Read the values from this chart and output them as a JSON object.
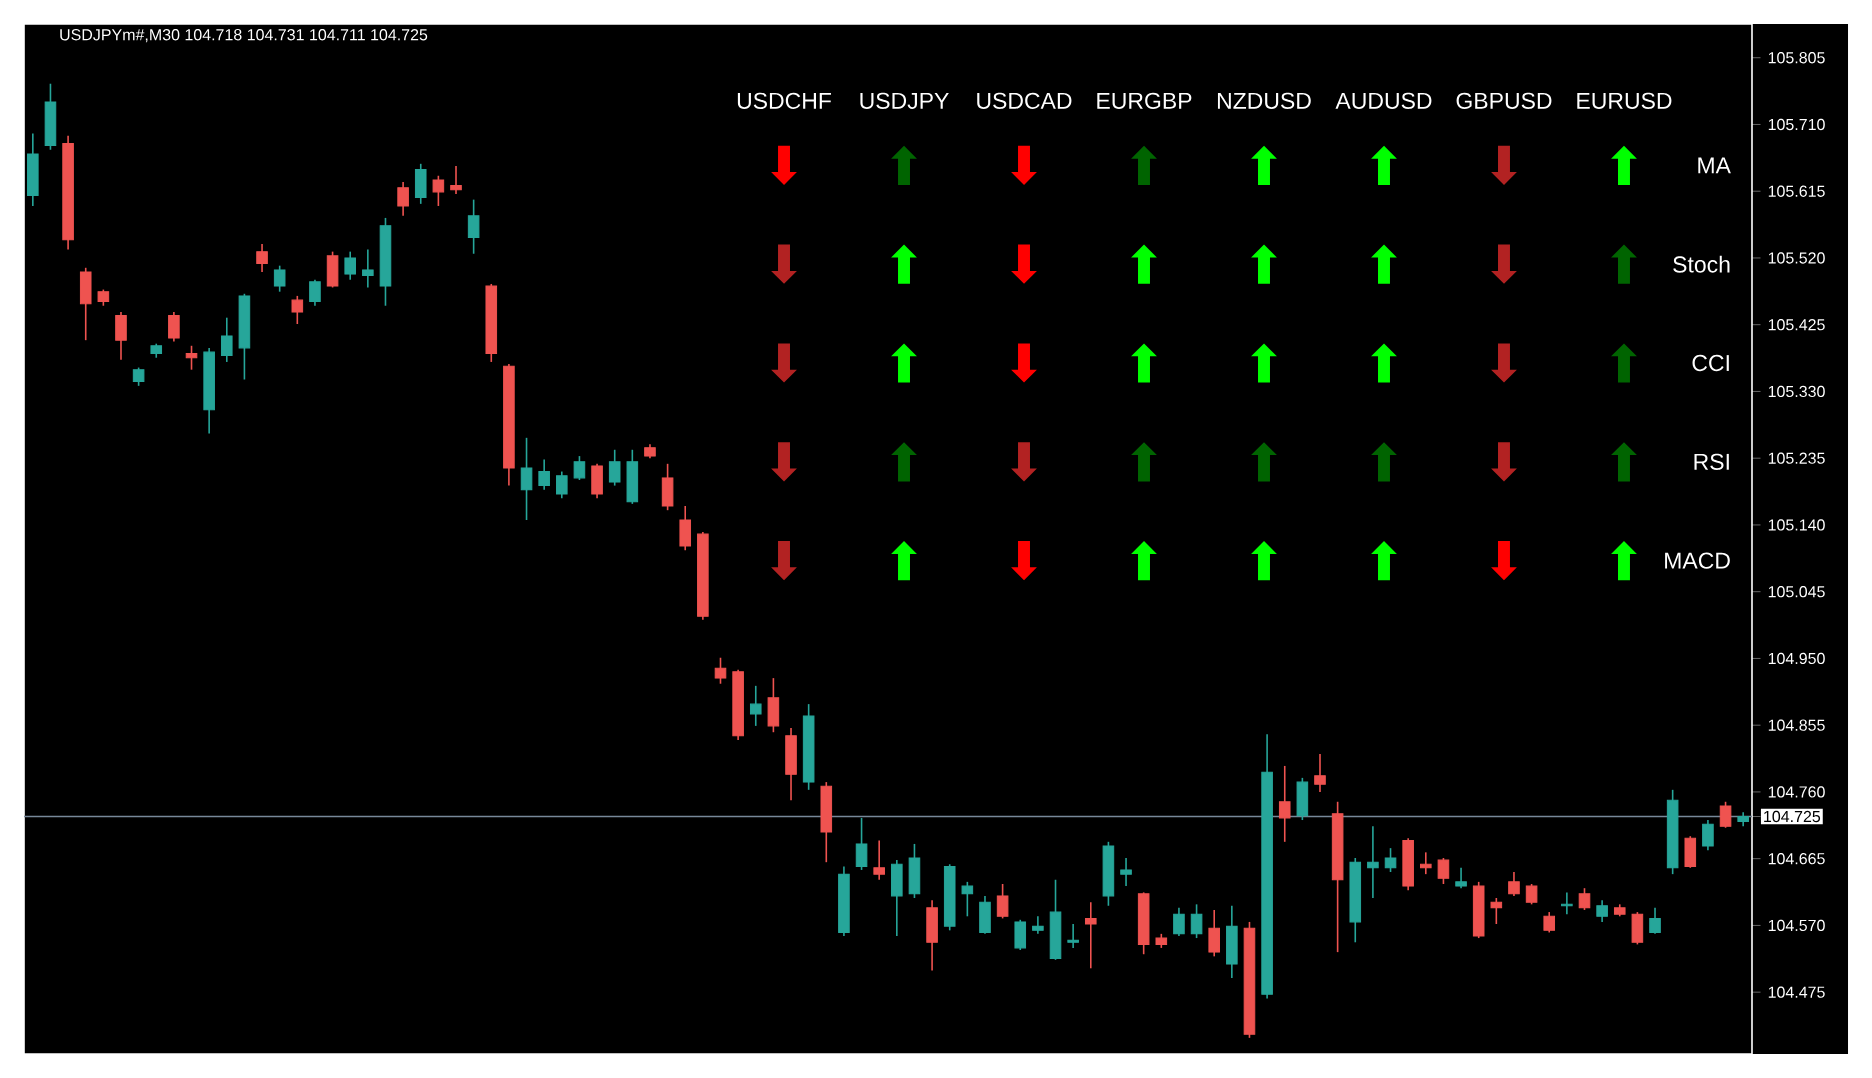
{
  "chart_data": [
    {
      "type": "candlestick",
      "title": "USDJPYm#,M30 104.718 104.731 104.711 104.725",
      "categories": [
        null,
        null,
        null,
        null,
        null,
        null,
        null,
        null,
        null,
        null,
        null,
        null,
        null,
        null,
        null,
        null,
        null,
        null,
        null,
        null,
        null,
        null,
        null,
        null,
        null,
        null,
        null,
        null,
        null,
        null,
        null,
        null,
        null,
        null,
        null,
        null,
        null,
        null,
        null,
        null,
        null,
        null,
        null,
        null,
        null,
        null,
        null,
        null,
        null,
        null,
        null,
        null,
        null,
        null,
        null,
        null,
        null,
        null,
        null,
        null,
        null,
        null,
        null,
        null,
        null,
        null,
        null,
        null,
        null,
        null,
        null,
        null,
        null,
        null,
        null,
        null,
        null,
        null,
        null,
        null,
        null,
        null,
        null,
        null,
        null,
        null,
        null,
        null,
        null,
        null,
        null,
        null,
        null,
        null,
        null,
        null,
        null,
        null
      ],
      "ohlc": [
        [
          105.609,
          105.697,
          105.594,
          105.668
        ],
        [
          105.68,
          105.768,
          105.674,
          105.742
        ],
        [
          105.683,
          105.694,
          105.532,
          105.546
        ],
        [
          105.5,
          105.506,
          105.403,
          105.455
        ],
        [
          105.472,
          105.475,
          105.452,
          105.458
        ],
        [
          105.438,
          105.443,
          105.375,
          105.403
        ],
        [
          105.344,
          105.364,
          105.338,
          105.361
        ],
        [
          105.384,
          105.398,
          105.378,
          105.395
        ],
        [
          105.438,
          105.443,
          105.401,
          105.406
        ],
        [
          105.384,
          105.395,
          105.361,
          105.378
        ],
        [
          105.304,
          105.392,
          105.27,
          105.386
        ],
        [
          105.381,
          105.435,
          105.372,
          105.409
        ],
        [
          105.392,
          105.469,
          105.347,
          105.466
        ],
        [
          105.529,
          105.54,
          105.5,
          105.512
        ],
        [
          105.48,
          105.509,
          105.472,
          105.503
        ],
        [
          105.46,
          105.466,
          105.426,
          105.443
        ],
        [
          105.458,
          105.489,
          105.452,
          105.486
        ],
        [
          105.523,
          105.529,
          105.478,
          105.48
        ],
        [
          105.497,
          105.529,
          105.489,
          105.52
        ],
        [
          105.495,
          105.532,
          105.478,
          105.503
        ],
        [
          105.48,
          105.577,
          105.452,
          105.566
        ],
        [
          105.62,
          105.628,
          105.58,
          105.594
        ],
        [
          105.606,
          105.654,
          105.597,
          105.646
        ],
        [
          105.631,
          105.637,
          105.594,
          105.614
        ],
        [
          105.623,
          105.651,
          105.611,
          105.617
        ],
        [
          105.549,
          105.603,
          105.526,
          105.58
        ],
        [
          105.48,
          105.483,
          105.372,
          105.384
        ],
        [
          105.366,
          105.369,
          105.196,
          105.221
        ],
        [
          105.19,
          105.264,
          105.147,
          105.221
        ],
        [
          105.196,
          105.233,
          105.19,
          105.216
        ],
        [
          105.184,
          105.216,
          105.178,
          105.21
        ],
        [
          105.207,
          105.238,
          105.204,
          105.23
        ],
        [
          105.224,
          105.227,
          105.178,
          105.184
        ],
        [
          105.201,
          105.247,
          105.196,
          105.23
        ],
        [
          105.173,
          105.247,
          105.17,
          105.23
        ],
        [
          105.25,
          105.255,
          105.235,
          105.238
        ],
        [
          105.207,
          105.227,
          105.161,
          105.167
        ],
        [
          105.147,
          105.167,
          105.104,
          105.11
        ],
        [
          105.127,
          105.13,
          105.005,
          105.01
        ],
        [
          104.936,
          104.951,
          104.914,
          104.922
        ],
        [
          104.931,
          104.934,
          104.834,
          104.84
        ],
        [
          104.871,
          104.911,
          104.854,
          104.885
        ],
        [
          104.894,
          104.922,
          104.845,
          104.854
        ],
        [
          104.84,
          104.851,
          104.748,
          104.785
        ],
        [
          104.774,
          104.885,
          104.763,
          104.868
        ],
        [
          104.768,
          104.774,
          104.66,
          104.703
        ],
        [
          104.56,
          104.654,
          104.555,
          104.643
        ],
        [
          104.654,
          104.723,
          104.649,
          104.686
        ],
        [
          104.652,
          104.691,
          104.635,
          104.643
        ],
        [
          104.612,
          104.663,
          104.555,
          104.657
        ],
        [
          104.615,
          104.686,
          104.609,
          104.666
        ],
        [
          104.595,
          104.606,
          104.506,
          104.546
        ],
        [
          104.569,
          104.657,
          104.563,
          104.654
        ],
        [
          104.615,
          104.632,
          104.583,
          104.626
        ],
        [
          104.56,
          104.612,
          104.558,
          104.603
        ],
        [
          104.612,
          104.629,
          104.58,
          104.583
        ],
        [
          104.538,
          104.578,
          104.535,
          104.575
        ],
        [
          104.563,
          104.583,
          104.558,
          104.569
        ],
        [
          104.523,
          104.635,
          104.521,
          104.589
        ],
        [
          104.546,
          104.572,
          104.538,
          104.549
        ],
        [
          104.58,
          104.603,
          104.509,
          104.572
        ],
        [
          104.612,
          104.689,
          104.598,
          104.683
        ],
        [
          104.643,
          104.666,
          104.626,
          104.649
        ],
        [
          104.615,
          104.617,
          104.529,
          104.543
        ],
        [
          104.552,
          104.558,
          104.538,
          104.543
        ],
        [
          104.558,
          104.595,
          104.555,
          104.586
        ],
        [
          104.558,
          104.6,
          104.552,
          104.586
        ],
        [
          104.566,
          104.592,
          104.526,
          104.532
        ],
        [
          104.515,
          104.598,
          104.495,
          104.569
        ],
        [
          104.566,
          104.575,
          104.41,
          104.415
        ],
        [
          104.472,
          104.842,
          104.466,
          104.788
        ],
        [
          104.746,
          104.797,
          104.689,
          104.723
        ],
        [
          104.726,
          104.78,
          104.72,
          104.774
        ],
        [
          104.783,
          104.814,
          104.76,
          104.771
        ],
        [
          104.729,
          104.746,
          104.532,
          104.635
        ],
        [
          104.575,
          104.666,
          104.546,
          104.66
        ],
        [
          104.652,
          104.711,
          104.609,
          104.66
        ],
        [
          104.652,
          104.68,
          104.646,
          104.666
        ],
        [
          104.691,
          104.694,
          104.62,
          104.626
        ],
        [
          104.657,
          104.674,
          104.643,
          104.652
        ],
        [
          104.663,
          104.666,
          104.629,
          104.637
        ],
        [
          104.626,
          104.652,
          104.623,
          104.632
        ],
        [
          104.626,
          104.632,
          104.552,
          104.555
        ],
        [
          104.603,
          104.609,
          104.572,
          104.595
        ],
        [
          104.632,
          104.646,
          104.612,
          104.615
        ],
        [
          104.626,
          104.629,
          104.6,
          104.603
        ],
        [
          104.583,
          104.589,
          104.56,
          104.563
        ],
        [
          104.598,
          104.617,
          104.586,
          104.6
        ],
        [
          104.615,
          104.623,
          104.592,
          104.595
        ],
        [
          104.583,
          104.606,
          104.575,
          104.598
        ],
        [
          104.595,
          104.6,
          104.583,
          104.586
        ],
        [
          104.586,
          104.589,
          104.543,
          104.546
        ],
        [
          104.56,
          104.595,
          104.558,
          104.58
        ],
        [
          104.652,
          104.763,
          104.643,
          104.748
        ],
        [
          104.694,
          104.697,
          104.652,
          104.654
        ],
        [
          104.683,
          104.72,
          104.677,
          104.714
        ],
        [
          104.74,
          104.746,
          104.709,
          104.711
        ],
        [
          104.718,
          104.731,
          104.711,
          104.725
        ]
      ],
      "colors": [
        "#26a69a",
        "#26a69a",
        "#ef5350",
        "#ef5350",
        "#ef5350",
        "#ef5350",
        "#26a69a",
        "#26a69a",
        "#ef5350",
        "#ef5350",
        "#26a69a",
        "#26a69a",
        "#26a69a",
        "#ef5350",
        "#26a69a",
        "#ef5350",
        "#26a69a",
        "#ef5350",
        "#26a69a",
        "#26a69a",
        "#26a69a",
        "#ef5350",
        "#26a69a",
        "#ef5350",
        "#ef5350",
        "#26a69a",
        "#ef5350",
        "#ef5350",
        "#26a69a",
        "#26a69a",
        "#26a69a",
        "#26a69a",
        "#ef5350",
        "#26a69a",
        "#26a69a",
        "#ef5350",
        "#ef5350",
        "#ef5350",
        "#ef5350",
        "#ef5350",
        "#ef5350",
        "#26a69a",
        "#ef5350",
        "#ef5350",
        "#26a69a",
        "#ef5350",
        "#26a69a",
        "#26a69a",
        "#ef5350",
        "#26a69a",
        "#26a69a",
        "#ef5350",
        "#26a69a",
        "#26a69a",
        "#26a69a",
        "#ef5350",
        "#26a69a",
        "#26a69a",
        "#26a69a",
        "#26a69a",
        "#ef5350",
        "#26a69a",
        "#26a69a",
        "#ef5350",
        "#ef5350",
        "#26a69a",
        "#26a69a",
        "#ef5350",
        "#26a69a",
        "#ef5350",
        "#26a69a",
        "#ef5350",
        "#26a69a",
        "#ef5350",
        "#ef5350",
        "#26a69a",
        "#26a69a",
        "#26a69a",
        "#ef5350",
        "#ef5350",
        "#ef5350",
        "#26a69a",
        "#ef5350",
        "#ef5350",
        "#ef5350",
        "#ef5350",
        "#ef5350",
        "#26a69a",
        "#ef5350",
        "#26a69a",
        "#ef5350",
        "#ef5350",
        "#26a69a",
        "#26a69a",
        "#ef5350",
        "#26a69a",
        "#ef5350",
        "#26a69a"
      ],
      "ylim": [
        104.387,
        105.853
      ],
      "yticks": [
        105.805,
        {
          "value": 105.71,
          "label": "105.710"
        },
        105.615,
        {
          "value": 105.52,
          "label": "105.520"
        },
        105.425,
        {
          "value": 105.33,
          "label": "105.330"
        },
        105.235,
        {
          "value": 105.14,
          "label": "105.140"
        },
        105.045,
        {
          "value": 104.95,
          "label": "104.950"
        },
        104.855,
        {
          "value": 104.76,
          "label": "104.760"
        },
        104.665,
        {
          "value": 104.57,
          "label": "104.570"
        },
        104.475
      ],
      "tick_labels": "y",
      "ref_lines": [
        {
          "axis": "y",
          "value": 104.725,
          "label": "104.725",
          "color": "#778899"
        }
      ]
    },
    {
      "type": "other",
      "categories": [
        "USDCHF",
        "USDJPY",
        "USDCAD",
        "EURGBP",
        "NZDUSD",
        "AUDUSD",
        "GBPUSD",
        "EURUSD"
      ],
      "y_categories": [
        "MA",
        "Stoch",
        "CCI",
        "RSI",
        "MACD"
      ],
      "cell_labels": [
        [
          "⬇",
          "⬆",
          "⬇",
          "⬆",
          "⬆",
          "⬆",
          "⬇",
          "⬆"
        ],
        [
          "⬇",
          "⬆",
          "⬇",
          "⬆",
          "⬆",
          "⬆",
          "⬇",
          "⬆"
        ],
        [
          "⬇",
          "⬆",
          "⬇",
          "⬆",
          "⬆",
          "⬆",
          "⬇",
          "⬆"
        ],
        [
          "⬇",
          "⬆",
          "⬇",
          "⬆",
          "⬆",
          "⬆",
          "⬇",
          "⬆"
        ],
        [
          "⬇",
          "⬆",
          "⬇",
          "⬆",
          "⬆",
          "⬆",
          "⬇",
          "⬆"
        ]
      ],
      "colors": [
        [
          "#ff0000",
          "#006400",
          "#ff0000",
          "#006400",
          "#00ff00",
          "#00ff00",
          "#b22222",
          "#00ff00"
        ],
        [
          "#b22222",
          "#00ff00",
          "#ff0000",
          "#00ff00",
          "#00ff00",
          "#00ff00",
          "#b22222",
          "#006400"
        ],
        [
          "#b22222",
          "#00ff00",
          "#ff0000",
          "#00ff00",
          "#00ff00",
          "#00ff00",
          "#b22222",
          "#006400"
        ],
        [
          "#b22222",
          "#006400",
          "#b22222",
          "#006400",
          "#006400",
          "#006400",
          "#b22222",
          "#006400"
        ],
        [
          "#b22222",
          "#00ff00",
          "#ff0000",
          "#00ff00",
          "#00ff00",
          "#00ff00",
          "#ff0000",
          "#00ff00"
        ]
      ]
    }
  ]
}
